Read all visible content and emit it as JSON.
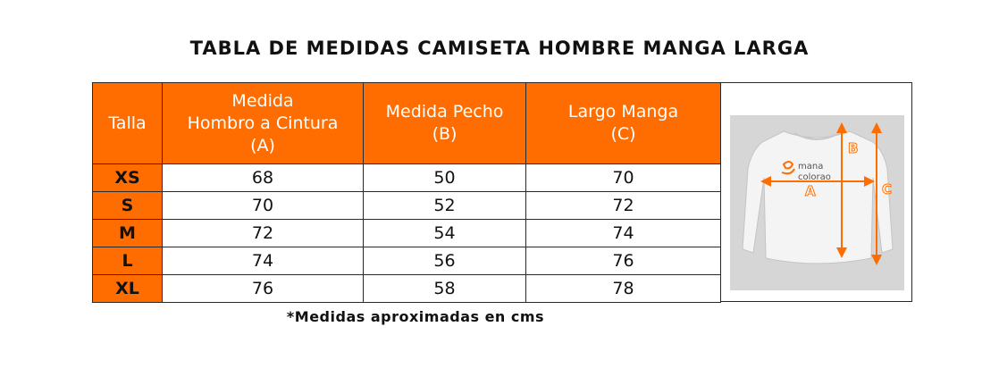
{
  "title": "TABLA DE MEDIDAS CAMISETA HOMBRE MANGA LARGA",
  "table": {
    "headers": [
      {
        "lines": [
          "Talla"
        ]
      },
      {
        "lines": [
          "Medida",
          "Hombro a Cintura",
          "(A)"
        ]
      },
      {
        "lines": [
          "Medida Pecho",
          "(B)"
        ]
      },
      {
        "lines": [
          "Largo Manga",
          "(C)"
        ]
      }
    ],
    "rows": [
      {
        "size": "XS",
        "a": "68",
        "b": "50",
        "c": "70"
      },
      {
        "size": "S",
        "a": "70",
        "b": "52",
        "c": "72"
      },
      {
        "size": "M",
        "a": "72",
        "b": "54",
        "c": "74"
      },
      {
        "size": "L",
        "a": "74",
        "b": "56",
        "c": "76"
      },
      {
        "size": "XL",
        "a": "76",
        "b": "58",
        "c": "78"
      }
    ]
  },
  "diagram": {
    "label_a": "A",
    "label_b": "B",
    "label_c": "C",
    "brand_line1": "mana",
    "brand_line2": "colorao",
    "accent_color": "#ff6d00"
  },
  "note": "*Medidas aproximadas en cms"
}
